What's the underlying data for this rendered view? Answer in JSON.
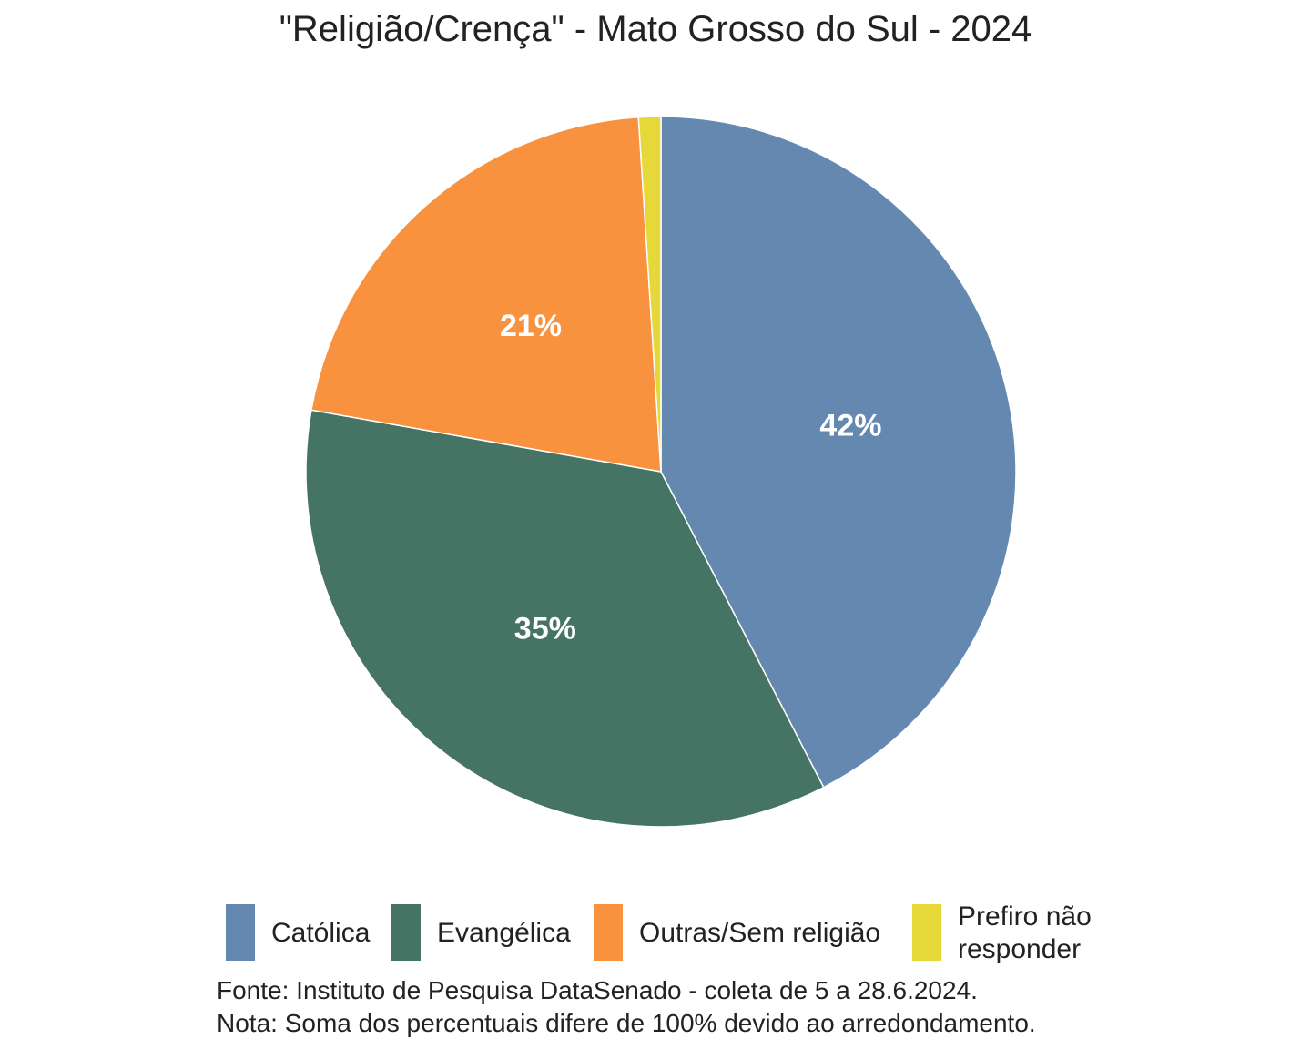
{
  "chart_data": {
    "type": "pie",
    "title": "\"Religião/Crença\" - Mato Grosso do Sul - 2024",
    "slices": [
      {
        "name": "Católica",
        "value": 42,
        "label": "42%",
        "color": "#6588b0"
      },
      {
        "name": "Evangélica",
        "value": 35,
        "label": "35%",
        "color": "#467464"
      },
      {
        "name": "Outras/Sem religião",
        "value": 21,
        "label": "21%",
        "color": "#f8923e"
      },
      {
        "name": "Prefiro não responder",
        "value": 1,
        "label": "",
        "color": "#e5d838"
      }
    ],
    "legend": {
      "placement": "bottom",
      "items": [
        {
          "label": "Católica"
        },
        {
          "label": "Evangélica"
        },
        {
          "label": "Outras/Sem religião"
        },
        {
          "label_lines": [
            "Prefiro não",
            "responder"
          ]
        }
      ]
    }
  },
  "footnotes": {
    "source": "Fonte: Instituto de Pesquisa DataSenado - coleta de 5 a 28.6.2024.",
    "note": "Nota: Soma dos percentuais difere de 100% devido ao arredondamento."
  }
}
